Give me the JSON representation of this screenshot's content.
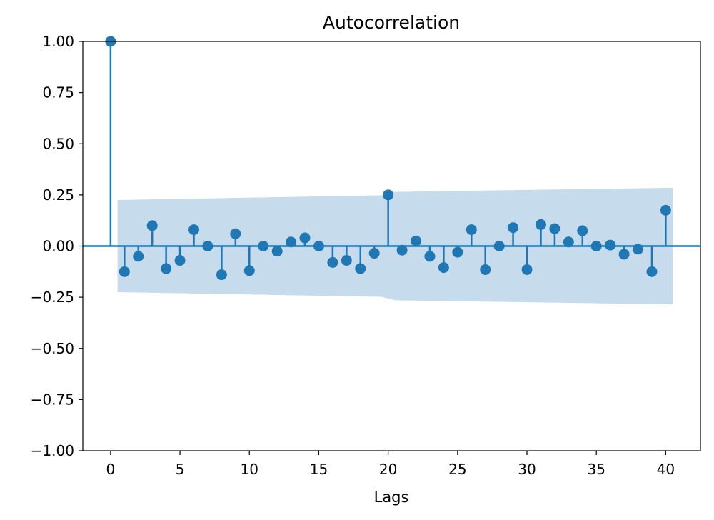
{
  "chart_data": {
    "type": "stem",
    "title": "Autocorrelation",
    "xlabel": "Lags",
    "ylabel": "",
    "xlim": [
      -2,
      42.5
    ],
    "ylim": [
      -1.0,
      1.0
    ],
    "xticks": [
      0,
      5,
      10,
      15,
      20,
      25,
      30,
      35,
      40
    ],
    "xtick_labels": [
      "0",
      "5",
      "10",
      "15",
      "20",
      "25",
      "30",
      "35",
      "40"
    ],
    "yticks": [
      1.0,
      0.75,
      0.5,
      0.25,
      0.0,
      -0.25,
      -0.5,
      -0.75,
      -1.0
    ],
    "ytick_labels": [
      "1.00",
      "0.75",
      "0.50",
      "0.25",
      "0.00",
      "−0.25",
      "−0.50",
      "−0.75",
      "−1.00"
    ],
    "grid": false,
    "color": "#1f77b4",
    "band_color": "#c6dbec",
    "lags": [
      0,
      1,
      2,
      3,
      4,
      5,
      6,
      7,
      8,
      9,
      10,
      11,
      12,
      13,
      14,
      15,
      16,
      17,
      18,
      19,
      20,
      21,
      22,
      23,
      24,
      25,
      26,
      27,
      28,
      29,
      30,
      31,
      32,
      33,
      34,
      35,
      36,
      37,
      38,
      39,
      40
    ],
    "values": [
      1.0,
      -0.125,
      -0.05,
      0.1,
      -0.11,
      -0.07,
      0.08,
      0.0,
      -0.14,
      0.06,
      -0.12,
      0.0,
      -0.025,
      0.02,
      0.04,
      0.0,
      -0.08,
      -0.07,
      -0.11,
      -0.035,
      0.25,
      -0.02,
      0.025,
      -0.05,
      -0.105,
      -0.03,
      0.08,
      -0.115,
      0.0,
      0.09,
      -0.115,
      0.105,
      0.085,
      0.02,
      0.075,
      0.0,
      0.005,
      -0.04,
      -0.015,
      -0.125,
      0.175
    ],
    "confidence_band": {
      "x": [
        0.5,
        19.5,
        20.5,
        40.5
      ],
      "upper": [
        0.225,
        0.248,
        0.265,
        0.285
      ],
      "lower": [
        -0.225,
        -0.248,
        -0.265,
        -0.285
      ]
    }
  }
}
